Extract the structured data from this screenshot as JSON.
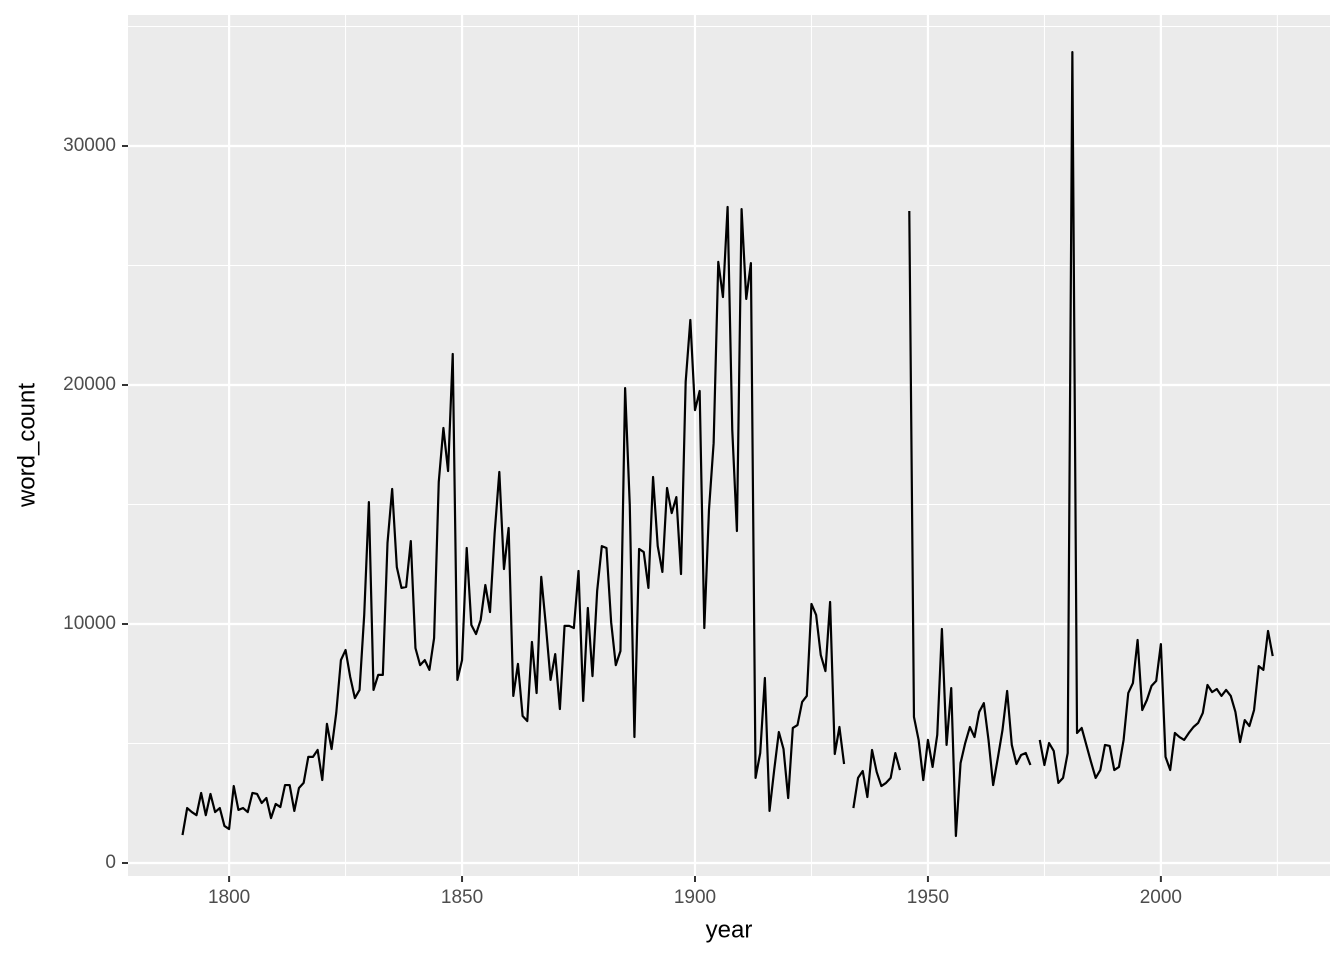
{
  "chart_data": {
    "type": "line",
    "x_label": "year",
    "y_label": "word_count",
    "color": "#000000",
    "grid": true,
    "xlim": [
      1778.3,
      2036.3
    ],
    "ylim": [
      -544,
      35481
    ],
    "xticks": [
      1800,
      1850,
      1900,
      1950,
      2000
    ],
    "yticks": [
      0,
      10000,
      20000,
      30000
    ],
    "x": [
      1790,
      1791,
      1792,
      1793,
      1794,
      1795,
      1796,
      1797,
      1798,
      1799,
      1800,
      1801,
      1802,
      1803,
      1804,
      1805,
      1806,
      1807,
      1808,
      1809,
      1810,
      1811,
      1812,
      1813,
      1814,
      1815,
      1816,
      1817,
      1818,
      1819,
      1820,
      1821,
      1822,
      1823,
      1824,
      1825,
      1826,
      1827,
      1828,
      1829,
      1830,
      1831,
      1832,
      1833,
      1834,
      1835,
      1836,
      1837,
      1838,
      1839,
      1840,
      1841,
      1842,
      1843,
      1844,
      1845,
      1846,
      1847,
      1848,
      1849,
      1850,
      1851,
      1852,
      1853,
      1854,
      1855,
      1856,
      1857,
      1858,
      1859,
      1860,
      1861,
      1862,
      1863,
      1864,
      1865,
      1866,
      1867,
      1868,
      1869,
      1870,
      1871,
      1872,
      1873,
      1874,
      1875,
      1876,
      1877,
      1878,
      1879,
      1880,
      1881,
      1882,
      1883,
      1884,
      1885,
      1886,
      1887,
      1888,
      1889,
      1890,
      1891,
      1892,
      1893,
      1894,
      1895,
      1896,
      1897,
      1898,
      1899,
      1900,
      1901,
      1902,
      1903,
      1904,
      1905,
      1906,
      1907,
      1908,
      1909,
      1910,
      1911,
      1912,
      1913,
      1914,
      1915,
      1916,
      1917,
      1918,
      1919,
      1920,
      1921,
      1922,
      1923,
      1924,
      1925,
      1926,
      1927,
      1928,
      1929,
      1930,
      1931,
      1932,
      1933,
      1934,
      1935,
      1936,
      1937,
      1938,
      1939,
      1940,
      1941,
      1942,
      1943,
      1944,
      1945,
      1946,
      1947,
      1948,
      1949,
      1950,
      1951,
      1952,
      1953,
      1954,
      1955,
      1956,
      1957,
      1958,
      1959,
      1960,
      1961,
      1962,
      1963,
      1964,
      1965,
      1966,
      1967,
      1968,
      1969,
      1970,
      1971,
      1972,
      1973,
      1974,
      1975,
      1976,
      1977,
      1978,
      1979,
      1980,
      1981,
      1982,
      1983,
      1984,
      1985,
      1986,
      1987,
      1988,
      1989,
      1990,
      1991,
      1992,
      1993,
      1994,
      1995,
      1996,
      1997,
      1998,
      1999,
      2000,
      2001,
      2002,
      2003,
      2004,
      2005,
      2006,
      2007,
      2008,
      2009,
      2010,
      2011,
      2012,
      2013,
      2014,
      2015,
      2016,
      2017,
      2018,
      2019,
      2020,
      2021,
      2022,
      2023,
      2024
    ],
    "values": [
      1170,
      2300,
      2130,
      2000,
      2930,
      2000,
      2890,
      2130,
      2300,
      1550,
      1420,
      3220,
      2220,
      2300,
      2130,
      2930,
      2890,
      2510,
      2720,
      1880,
      2470,
      2340,
      3260,
      3260,
      2180,
      3140,
      3350,
      4440,
      4440,
      4730,
      3470,
      5820,
      4770,
      6280,
      8490,
      8910,
      7780,
      6900,
      7240,
      10380,
      15100,
      7240,
      7870,
      7870,
      13390,
      15650,
      12380,
      11510,
      11550,
      13470,
      8990,
      8280,
      8490,
      8080,
      9410,
      15940,
      18200,
      16400,
      21300,
      7660,
      8490,
      13180,
      9960,
      9580,
      10170,
      11630,
      10500,
      13810,
      16360,
      12300,
      14020,
      6990,
      8330,
      6150,
      5940,
      9250,
      7110,
      11970,
      9920,
      7660,
      8740,
      6440,
      9920,
      9920,
      9830,
      12220,
      6780,
      10670,
      7820,
      11380,
      13260,
      13180,
      10080,
      8280,
      8870,
      19870,
      14980,
      5270,
      13140,
      13010,
      11510,
      16150,
      13260,
      12180,
      15690,
      14640,
      15310,
      12090,
      20130,
      22720,
      18950,
      19750,
      9830,
      14770,
      17570,
      25150,
      23680,
      27450,
      18120,
      13890,
      27360,
      23600,
      25100,
      3560,
      4600,
      7740,
      2180,
      3890,
      5480,
      4770,
      2720,
      5650,
      5770,
      6740,
      6990,
      10840,
      10380,
      8700,
      8030,
      10920,
      4560,
      5690,
      4140,
      null,
      2300,
      3560,
      3850,
      2760,
      4730,
      3810,
      3220,
      3350,
      3560,
      4600,
      3890,
      null,
      27280,
      6110,
      5150,
      3470,
      5150,
      4020,
      5360,
      9790,
      4940,
      7320,
      1130,
      4180,
      5020,
      5690,
      5270,
      6320,
      6690,
      5150,
      3260,
      4390,
      5560,
      7200,
      4940,
      4140,
      4520,
      4600,
      4100,
      null,
      5150,
      4100,
      5020,
      4690,
      3350,
      3560,
      4600,
      33930,
      5440,
      5650,
      4940,
      4230,
      3560,
      3890,
      4940,
      4900,
      3890,
      4020,
      5150,
      7110,
      7530,
      9330,
      6400,
      6820,
      7410,
      7620,
      9160,
      4440,
      3890,
      5440,
      5270,
      5150,
      5440,
      5690,
      5860,
      6280,
      7450,
      7150,
      7280,
      6990,
      7240,
      6990,
      6320,
      5060,
      5980,
      5730,
      6400,
      8240,
      8080,
      9710,
      8660
    ]
  }
}
